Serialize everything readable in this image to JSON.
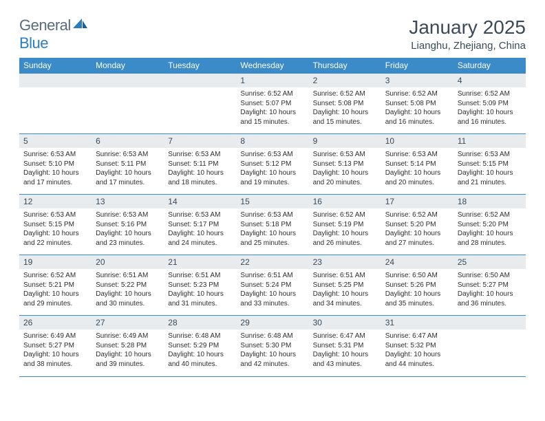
{
  "brand": {
    "text1": "General",
    "text2": "Blue"
  },
  "title": "January 2025",
  "location": "Lianghu, Zhejiang, China",
  "colors": {
    "header_bg": "#3b8bc8",
    "header_text": "#ffffff",
    "daynum_bg": "#e8ecef",
    "text": "#3a4a58",
    "rule": "#3b8bc8",
    "logo_gray": "#5a6b7a",
    "logo_blue": "#2a7dbf"
  },
  "daysOfWeek": [
    "Sunday",
    "Monday",
    "Tuesday",
    "Wednesday",
    "Thursday",
    "Friday",
    "Saturday"
  ],
  "weeks": [
    [
      null,
      null,
      null,
      {
        "n": "1",
        "sunrise": "6:52 AM",
        "sunset": "5:07 PM",
        "daylight": "10 hours and 15 minutes."
      },
      {
        "n": "2",
        "sunrise": "6:52 AM",
        "sunset": "5:08 PM",
        "daylight": "10 hours and 15 minutes."
      },
      {
        "n": "3",
        "sunrise": "6:52 AM",
        "sunset": "5:08 PM",
        "daylight": "10 hours and 16 minutes."
      },
      {
        "n": "4",
        "sunrise": "6:52 AM",
        "sunset": "5:09 PM",
        "daylight": "10 hours and 16 minutes."
      }
    ],
    [
      {
        "n": "5",
        "sunrise": "6:53 AM",
        "sunset": "5:10 PM",
        "daylight": "10 hours and 17 minutes."
      },
      {
        "n": "6",
        "sunrise": "6:53 AM",
        "sunset": "5:11 PM",
        "daylight": "10 hours and 17 minutes."
      },
      {
        "n": "7",
        "sunrise": "6:53 AM",
        "sunset": "5:11 PM",
        "daylight": "10 hours and 18 minutes."
      },
      {
        "n": "8",
        "sunrise": "6:53 AM",
        "sunset": "5:12 PM",
        "daylight": "10 hours and 19 minutes."
      },
      {
        "n": "9",
        "sunrise": "6:53 AM",
        "sunset": "5:13 PM",
        "daylight": "10 hours and 20 minutes."
      },
      {
        "n": "10",
        "sunrise": "6:53 AM",
        "sunset": "5:14 PM",
        "daylight": "10 hours and 20 minutes."
      },
      {
        "n": "11",
        "sunrise": "6:53 AM",
        "sunset": "5:15 PM",
        "daylight": "10 hours and 21 minutes."
      }
    ],
    [
      {
        "n": "12",
        "sunrise": "6:53 AM",
        "sunset": "5:15 PM",
        "daylight": "10 hours and 22 minutes."
      },
      {
        "n": "13",
        "sunrise": "6:53 AM",
        "sunset": "5:16 PM",
        "daylight": "10 hours and 23 minutes."
      },
      {
        "n": "14",
        "sunrise": "6:53 AM",
        "sunset": "5:17 PM",
        "daylight": "10 hours and 24 minutes."
      },
      {
        "n": "15",
        "sunrise": "6:53 AM",
        "sunset": "5:18 PM",
        "daylight": "10 hours and 25 minutes."
      },
      {
        "n": "16",
        "sunrise": "6:52 AM",
        "sunset": "5:19 PM",
        "daylight": "10 hours and 26 minutes."
      },
      {
        "n": "17",
        "sunrise": "6:52 AM",
        "sunset": "5:20 PM",
        "daylight": "10 hours and 27 minutes."
      },
      {
        "n": "18",
        "sunrise": "6:52 AM",
        "sunset": "5:20 PM",
        "daylight": "10 hours and 28 minutes."
      }
    ],
    [
      {
        "n": "19",
        "sunrise": "6:52 AM",
        "sunset": "5:21 PM",
        "daylight": "10 hours and 29 minutes."
      },
      {
        "n": "20",
        "sunrise": "6:51 AM",
        "sunset": "5:22 PM",
        "daylight": "10 hours and 30 minutes."
      },
      {
        "n": "21",
        "sunrise": "6:51 AM",
        "sunset": "5:23 PM",
        "daylight": "10 hours and 31 minutes."
      },
      {
        "n": "22",
        "sunrise": "6:51 AM",
        "sunset": "5:24 PM",
        "daylight": "10 hours and 33 minutes."
      },
      {
        "n": "23",
        "sunrise": "6:51 AM",
        "sunset": "5:25 PM",
        "daylight": "10 hours and 34 minutes."
      },
      {
        "n": "24",
        "sunrise": "6:50 AM",
        "sunset": "5:26 PM",
        "daylight": "10 hours and 35 minutes."
      },
      {
        "n": "25",
        "sunrise": "6:50 AM",
        "sunset": "5:27 PM",
        "daylight": "10 hours and 36 minutes."
      }
    ],
    [
      {
        "n": "26",
        "sunrise": "6:49 AM",
        "sunset": "5:27 PM",
        "daylight": "10 hours and 38 minutes."
      },
      {
        "n": "27",
        "sunrise": "6:49 AM",
        "sunset": "5:28 PM",
        "daylight": "10 hours and 39 minutes."
      },
      {
        "n": "28",
        "sunrise": "6:48 AM",
        "sunset": "5:29 PM",
        "daylight": "10 hours and 40 minutes."
      },
      {
        "n": "29",
        "sunrise": "6:48 AM",
        "sunset": "5:30 PM",
        "daylight": "10 hours and 42 minutes."
      },
      {
        "n": "30",
        "sunrise": "6:47 AM",
        "sunset": "5:31 PM",
        "daylight": "10 hours and 43 minutes."
      },
      {
        "n": "31",
        "sunrise": "6:47 AM",
        "sunset": "5:32 PM",
        "daylight": "10 hours and 44 minutes."
      },
      null
    ]
  ],
  "labels": {
    "sunrise": "Sunrise:",
    "sunset": "Sunset:",
    "daylight": "Daylight:"
  }
}
